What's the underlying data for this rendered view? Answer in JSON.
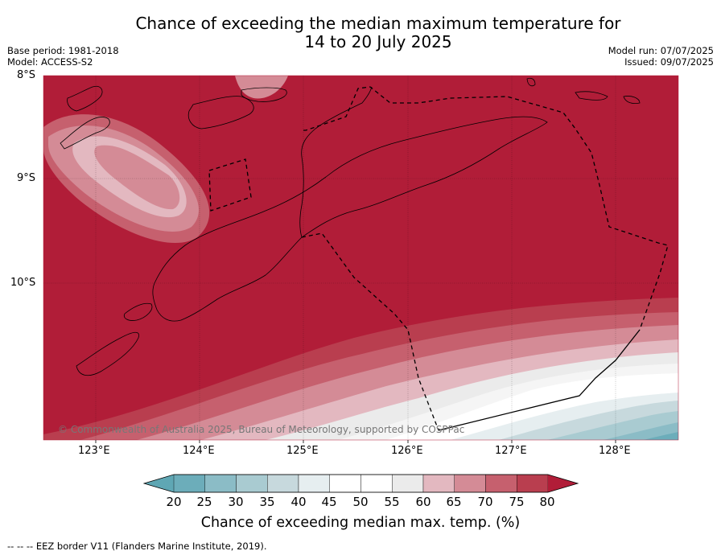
{
  "title_line1": "Chance of exceeding the median maximum temperature for",
  "title_line2": "14 to 20 July 2025",
  "meta": {
    "base_period": "Base period: 1981-2018",
    "model": "Model: ACCESS-S2",
    "model_run": "Model run: 07/07/2025",
    "issued": "Issued: 09/07/2025"
  },
  "map": {
    "lat_labels": [
      "8°S",
      "9°S",
      "10°S"
    ],
    "lon_labels": [
      "123°E",
      "124°E",
      "125°E",
      "126°E",
      "127°E",
      "128°E"
    ],
    "copyright": "© Commonwealth of Australia 2025, Bureau of Meteorology, supported by COSPPac",
    "dominant_category": "80+"
  },
  "colorbar": {
    "ticks": [
      "20",
      "25",
      "30",
      "35",
      "40",
      "45",
      "50",
      "55",
      "60",
      "65",
      "70",
      "75",
      "80"
    ],
    "colors": [
      "#5fa7b4",
      "#6cadba",
      "#8bbcc6",
      "#a9cbd1",
      "#c7d9dd",
      "#e6eef0",
      "#ffffff",
      "#ffffff",
      "#ebebeb",
      "#e3b8c0",
      "#d48b96",
      "#c6606e",
      "#b93e4f",
      "#b11d38"
    ],
    "title": "Chance of exceeding median max. temp. (%)"
  },
  "legend_note": "-- --  -- EEZ border V11 (Flanders Marine Institute, 2019)."
}
